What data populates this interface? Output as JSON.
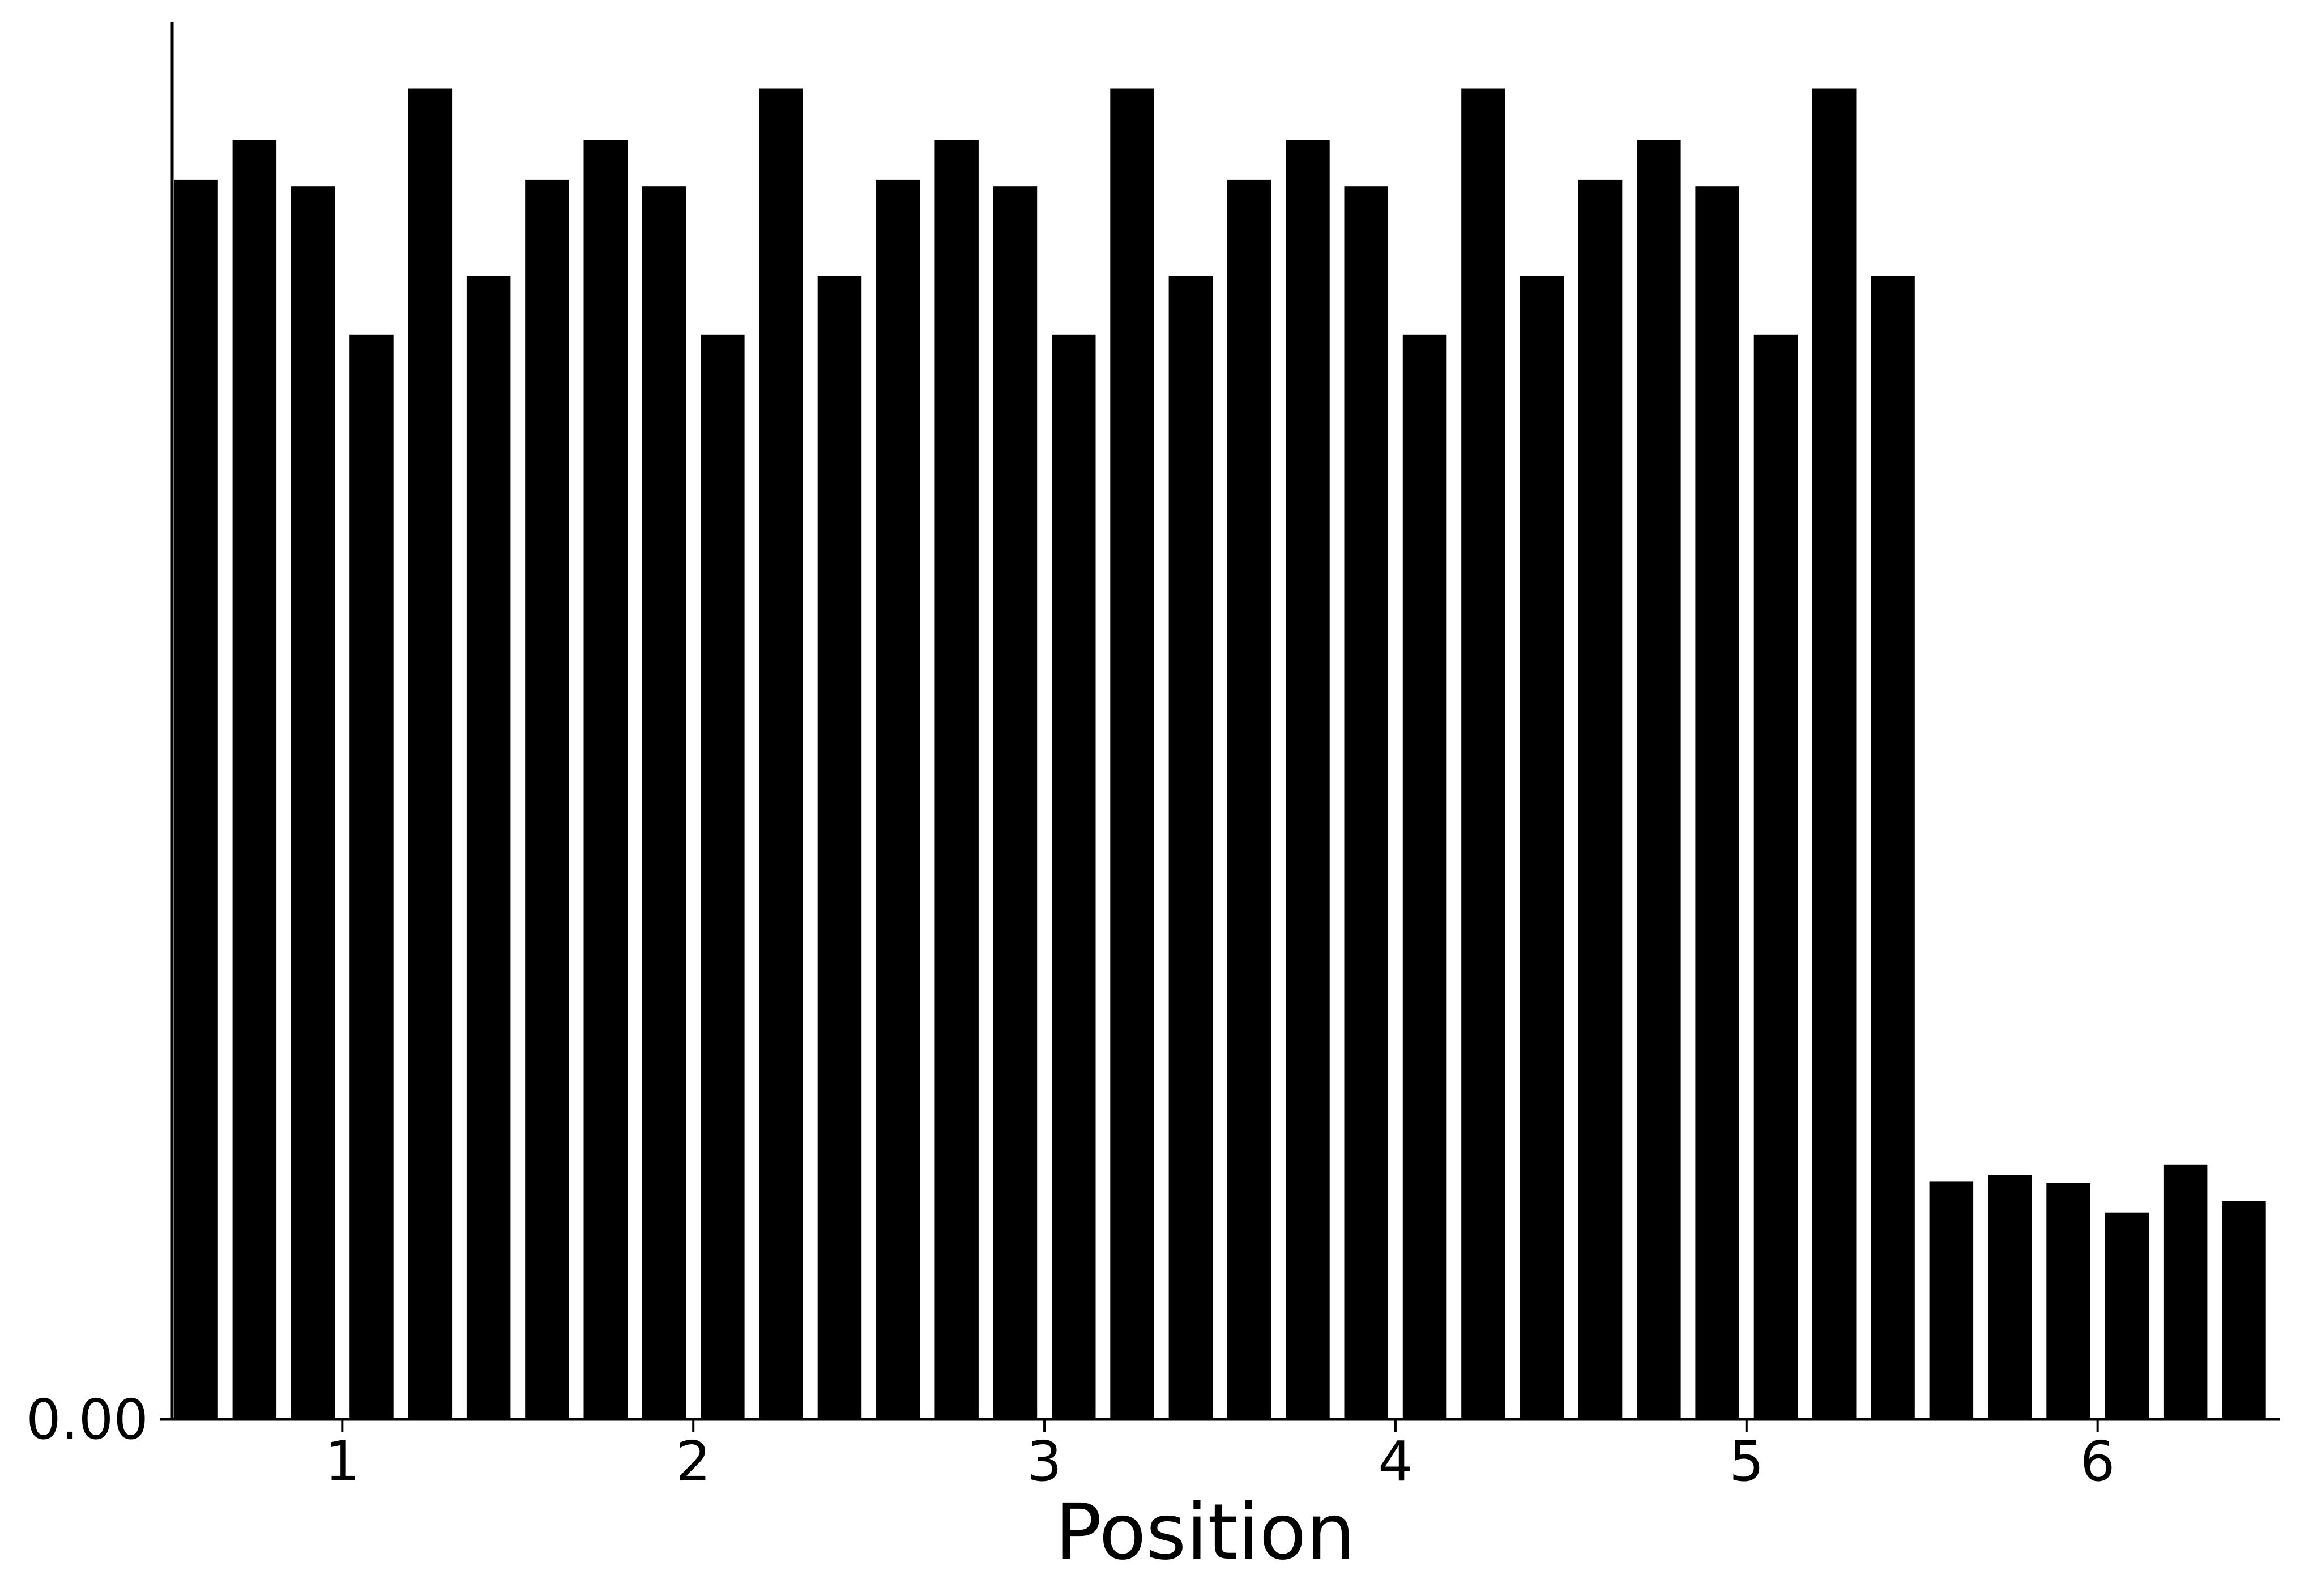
{
  "chart_data": {
    "type": "bar",
    "title": "",
    "xlabel": "Position",
    "ylabel": "",
    "grid": false,
    "legend": false,
    "bar_color": "#000000",
    "axis_color": "#000000",
    "background": "#ffffff",
    "x_ticks": [
      1,
      2,
      3,
      4,
      5,
      6
    ],
    "x_tick_labels": [
      "1",
      "2",
      "3",
      "4",
      "5",
      "6"
    ],
    "xlim": [
      0.48,
      6.52
    ],
    "ylim": [
      0,
      1.0
    ],
    "y_tick_labels": [
      "0.00"
    ],
    "y_ticks": [
      0
    ],
    "bars_per_position": 6,
    "bar_width": 0.125,
    "positions": [
      {
        "position": 1,
        "values": [
          0.887,
          0.915,
          0.882,
          0.776,
          0.952,
          0.818
        ]
      },
      {
        "position": 2,
        "values": [
          0.887,
          0.915,
          0.882,
          0.776,
          0.952,
          0.818
        ]
      },
      {
        "position": 3,
        "values": [
          0.887,
          0.915,
          0.882,
          0.776,
          0.952,
          0.818
        ]
      },
      {
        "position": 4,
        "values": [
          0.887,
          0.915,
          0.882,
          0.776,
          0.952,
          0.818
        ]
      },
      {
        "position": 5,
        "values": [
          0.887,
          0.915,
          0.882,
          0.776,
          0.952,
          0.818
        ]
      },
      {
        "position": 6,
        "values": [
          0.17,
          0.175,
          0.169,
          0.148,
          0.182,
          0.156
        ]
      }
    ]
  }
}
